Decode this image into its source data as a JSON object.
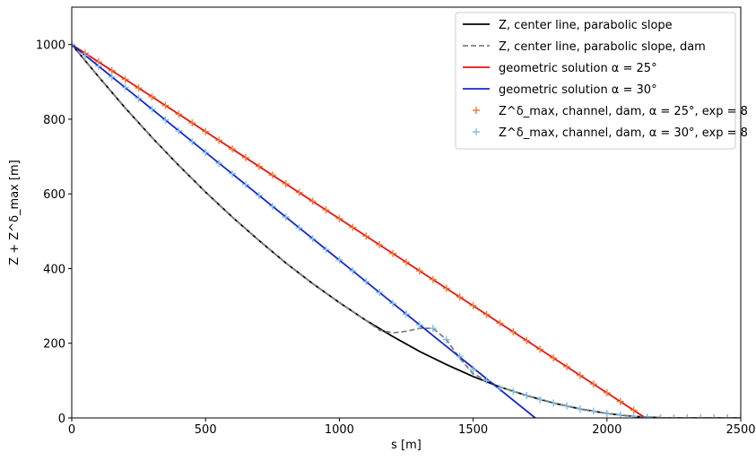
{
  "chart_data": {
    "type": "line",
    "xlabel": "s [m]",
    "ylabel": "Z + Z^δ_max [m]",
    "xlim": [
      0,
      2500
    ],
    "ylim": [
      0,
      1100
    ],
    "xticks": [
      0,
      500,
      1000,
      1500,
      2000,
      2500
    ],
    "yticks": [
      0,
      200,
      400,
      600,
      800,
      1000
    ],
    "legend": "upper right",
    "series": [
      {
        "name": "Z, center line, parabolic slope",
        "color": "#000000",
        "style": "solid",
        "x": [
          0,
          100,
          200,
          300,
          400,
          500,
          600,
          700,
          800,
          900,
          1000,
          1100,
          1200,
          1300,
          1400,
          1500,
          1600,
          1700,
          1800,
          1900,
          2000,
          2100,
          2200,
          2250,
          2500
        ],
        "values": [
          1000,
          914,
          830,
          751,
          676,
          605,
          538,
          475,
          415,
          360,
          309,
          261,
          218,
          178,
          143,
          111,
          83,
          60,
          40,
          24,
          12,
          4,
          0.5,
          0,
          0
        ]
      },
      {
        "name": "Z, center line, parabolic slope, dam",
        "color": "#808080",
        "style": "dashed",
        "x": [
          0,
          100,
          200,
          300,
          400,
          500,
          600,
          700,
          800,
          900,
          1000,
          1100,
          1150,
          1200,
          1250,
          1300,
          1350,
          1400,
          1450,
          1500,
          1600,
          1700,
          1800,
          1900,
          2000,
          2100,
          2200,
          2250,
          2500
        ],
        "values": [
          1000,
          914,
          830,
          751,
          676,
          605,
          538,
          475,
          415,
          360,
          309,
          261,
          235,
          228,
          232,
          240,
          240,
          210,
          160,
          118,
          83,
          60,
          40,
          24,
          12,
          4,
          0.5,
          0,
          0
        ]
      },
      {
        "name": "geometric solution α = 25°",
        "color": "#e8140c",
        "style": "solid",
        "x": [
          0,
          2144
        ],
        "values": [
          1000,
          0
        ]
      },
      {
        "name": "geometric solution α = 30°",
        "color": "#1428d0",
        "style": "solid",
        "x": [
          0,
          1732
        ],
        "values": [
          1000,
          0
        ]
      },
      {
        "name": "Z^δ_max, channel, dam, α = 25°, exp = 8",
        "color": "#f07838",
        "style": "plus",
        "x": [
          0,
          50,
          100,
          150,
          200,
          250,
          300,
          350,
          400,
          450,
          500,
          550,
          600,
          650,
          700,
          750,
          800,
          850,
          900,
          950,
          1000,
          1050,
          1100,
          1150,
          1200,
          1250,
          1300,
          1350,
          1400,
          1450,
          1500,
          1550,
          1600,
          1650,
          1700,
          1750,
          1800,
          1850,
          1900,
          1950,
          2000,
          2050,
          2100,
          2150,
          2200,
          2250,
          2300,
          2350,
          2400,
          2450,
          2500
        ],
        "values": [
          1000,
          976.7,
          953.4,
          930.1,
          906.7,
          883.4,
          860.1,
          836.8,
          813.5,
          790.2,
          766.9,
          743.5,
          720.2,
          696.9,
          673.6,
          650.3,
          627,
          603.6,
          580.3,
          557,
          533.7,
          510.4,
          487.1,
          463.8,
          440.4,
          417.1,
          393.8,
          370.5,
          347.2,
          323.9,
          300.6,
          277.2,
          253.9,
          230.6,
          207.3,
          184,
          160.7,
          137.3,
          114,
          90.7,
          67.4,
          44.1,
          20.8,
          0,
          0,
          0,
          0,
          0,
          0,
          0,
          0
        ]
      },
      {
        "name": "Z^δ_max, channel, dam, α = 30°, exp = 8",
        "color": "#80bce8",
        "style": "plus",
        "x": [
          0,
          50,
          100,
          150,
          200,
          250,
          300,
          350,
          400,
          450,
          500,
          550,
          600,
          650,
          700,
          750,
          800,
          850,
          900,
          950,
          1000,
          1050,
          1100,
          1150,
          1200,
          1250,
          1300,
          1350,
          1400,
          1450,
          1500,
          1550,
          1600,
          1650,
          1700,
          1750,
          1800,
          1850,
          1900,
          1950,
          2000,
          2050,
          2100,
          2150,
          2200,
          2250,
          2300,
          2350,
          2400,
          2450,
          2500
        ],
        "values": [
          1000,
          971,
          942,
          913,
          885,
          856,
          827,
          798,
          769,
          740,
          711,
          682,
          654,
          625,
          596,
          567,
          538,
          509,
          480,
          451,
          423,
          394,
          365,
          336,
          307,
          278,
          249,
          240,
          210,
          165,
          130,
          100,
          80,
          71,
          60,
          49,
          40,
          32,
          24,
          18,
          12,
          8,
          4,
          2,
          0,
          0,
          0,
          0,
          0,
          0,
          0
        ]
      }
    ]
  }
}
